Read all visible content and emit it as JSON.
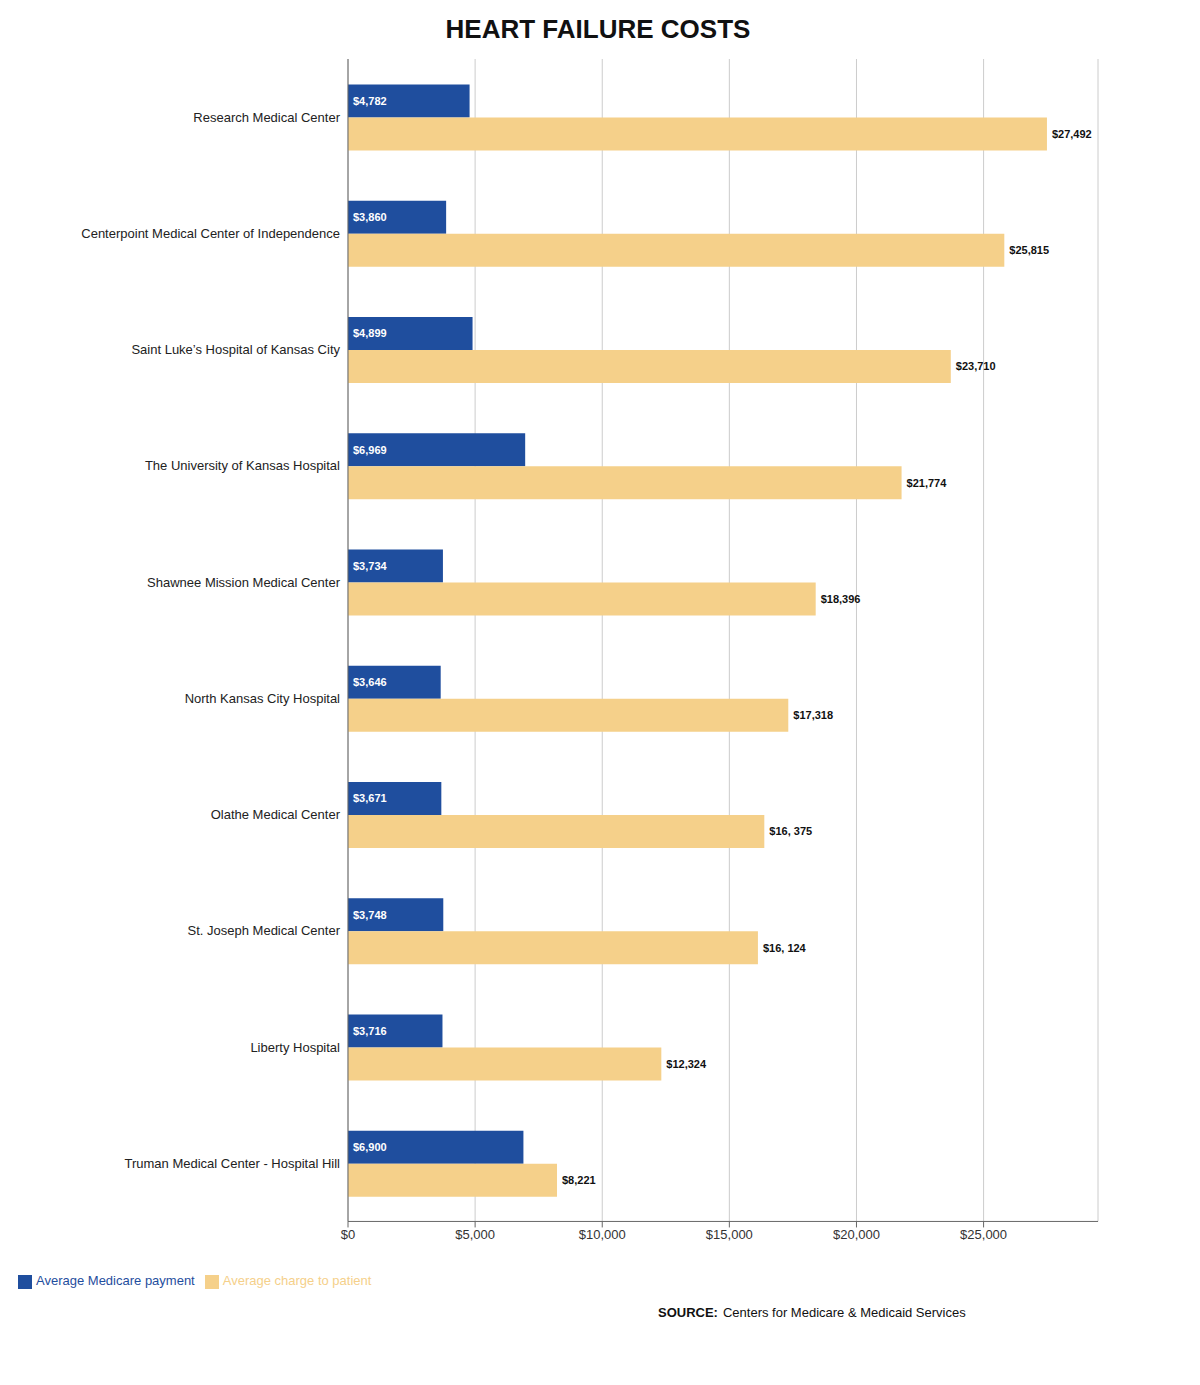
{
  "chart_data": {
    "type": "bar",
    "orientation": "horizontal",
    "title": "HEART FAILURE COSTS",
    "categories": [
      "Research Medical Center",
      "Centerpoint Medical Center of Independence",
      "Saint Luke’s Hospital of Kansas City",
      "The University of Kansas Hospital",
      "Shawnee Mission Medical Center",
      "North Kansas City Hospital",
      "Olathe Medical Center",
      "St. Joseph Medical Center",
      "Liberty Hospital",
      "Truman Medical Center - Hospital Hill"
    ],
    "series": [
      {
        "name": "Average Medicare payment",
        "color": "#1f4e9e",
        "values": [
          4782,
          3860,
          4899,
          6969,
          3734,
          3646,
          3671,
          3748,
          3716,
          6900
        ],
        "value_labels": [
          "$4,782",
          "$3,860",
          "$4,899",
          "$6,969",
          "$3,734",
          "$3,646",
          "$3,671",
          "$3,748",
          "$3,716",
          "$6,900"
        ]
      },
      {
        "name": "Average charge to patient",
        "color": "#f5d08a",
        "values": [
          27492,
          25815,
          23710,
          21774,
          18396,
          17318,
          16375,
          16124,
          12324,
          8221
        ],
        "value_labels": [
          "$27,492",
          "$25,815",
          "$23,710",
          "$21,774",
          "$18,396",
          "$17,318",
          "$16, 375",
          "$16, 124",
          "$12,324",
          "$8,221"
        ]
      }
    ],
    "xlim": [
      0,
      29500
    ],
    "xticks": [
      {
        "value": 0,
        "label": "$0"
      },
      {
        "value": 5000,
        "label": "$5,000"
      },
      {
        "value": 10000,
        "label": "$10,000"
      },
      {
        "value": 15000,
        "label": "$15,000"
      },
      {
        "value": 20000,
        "label": "$20,000"
      },
      {
        "value": 25000,
        "label": "$25,000"
      }
    ],
    "grid": true,
    "legend": "lower left",
    "data_labels": true,
    "annotations": [
      "SOURCE:",
      "Centers for Medicare & Medicaid Services"
    ]
  }
}
